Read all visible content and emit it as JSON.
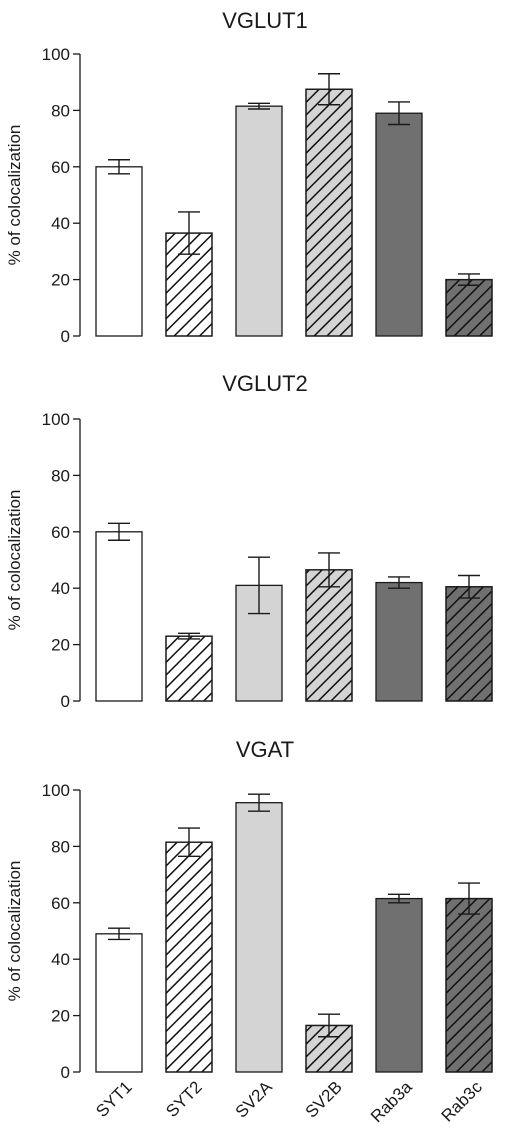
{
  "figure": {
    "categories": [
      "SYT1",
      "SYT2",
      "SV2A",
      "SV2B",
      "Rab3a",
      "Rab3c"
    ],
    "ylabel": "% of colocalization",
    "ylim": [
      0,
      100
    ],
    "yticks": [
      0,
      20,
      40,
      60,
      80,
      100
    ],
    "bar_styles": [
      {
        "fill": "#ffffff",
        "hatch": false
      },
      {
        "fill": "#ffffff",
        "hatch": true
      },
      {
        "fill": "#d4d4d4",
        "hatch": false
      },
      {
        "fill": "#d4d4d4",
        "hatch": true
      },
      {
        "fill": "#707070",
        "hatch": false
      },
      {
        "fill": "#707070",
        "hatch": true
      }
    ]
  },
  "chart_data": [
    {
      "type": "bar",
      "title": "VGLUT1",
      "categories": [
        "SYT1",
        "SYT2",
        "SV2A",
        "SV2B",
        "Rab3a",
        "Rab3c"
      ],
      "values": [
        60,
        36.5,
        81.5,
        87.5,
        79,
        20
      ],
      "errors": [
        2.5,
        7.5,
        1,
        5.5,
        4,
        2
      ],
      "ylabel": "% of colocalization",
      "ylim": [
        0,
        100
      ]
    },
    {
      "type": "bar",
      "title": "VGLUT2",
      "categories": [
        "SYT1",
        "SYT2",
        "SV2A",
        "SV2B",
        "Rab3a",
        "Rab3c"
      ],
      "values": [
        60,
        23,
        41,
        46.5,
        42,
        40.5
      ],
      "errors": [
        3,
        1,
        10,
        6,
        2,
        4
      ],
      "ylabel": "% of colocalization",
      "ylim": [
        0,
        100
      ]
    },
    {
      "type": "bar",
      "title": "VGAT",
      "categories": [
        "SYT1",
        "SYT2",
        "SV2A",
        "SV2B",
        "Rab3a",
        "Rab3c"
      ],
      "values": [
        49,
        81.5,
        95.5,
        16.5,
        61.5,
        61.5
      ],
      "errors": [
        2,
        5,
        3,
        4,
        1.5,
        5.5
      ],
      "ylabel": "% of colocalization",
      "ylim": [
        0,
        100
      ]
    }
  ]
}
